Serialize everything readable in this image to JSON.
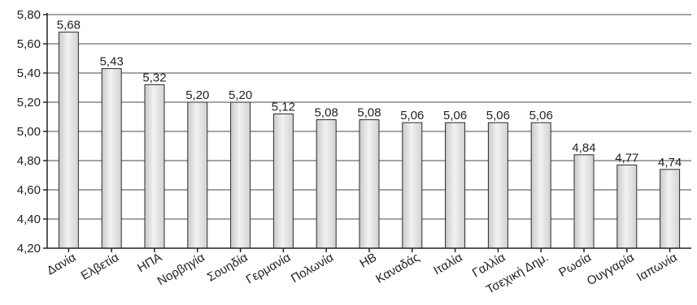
{
  "chart_data": {
    "type": "bar",
    "title": "",
    "xlabel": "",
    "ylabel": "",
    "categories": [
      "Δανία",
      "Ελβετία",
      "ΗΠΑ",
      "Νορβηγία",
      "Σουηδία",
      "Γερμανία",
      "Πολωνία",
      "ΗΒ",
      "Καναδάς",
      "Ιταλία",
      "Γαλλία",
      "Τσεχική Δημ.",
      "Ρωσία",
      "Ουγγαρία",
      "Ιαπωνία"
    ],
    "values": [
      5.68,
      5.43,
      5.32,
      5.2,
      5.2,
      5.12,
      5.08,
      5.08,
      5.06,
      5.06,
      5.06,
      5.06,
      4.84,
      4.77,
      4.74
    ],
    "value_labels": [
      "5,68",
      "5,43",
      "5,32",
      "5,20",
      "5,20",
      "5,12",
      "5,08",
      "5,08",
      "5,06",
      "5,06",
      "5,06",
      "5,06",
      "4,84",
      "4,77",
      "4,74"
    ],
    "y_ticks": [
      4.2,
      4.4,
      4.6,
      4.8,
      5.0,
      5.2,
      5.4,
      5.6,
      5.8
    ],
    "y_tick_labels": [
      "4,20",
      "4,40",
      "4,60",
      "4,80",
      "5,00",
      "5,20",
      "5,40",
      "5,60",
      "5,80"
    ],
    "ylim": [
      4.2,
      5.8
    ],
    "grid": true,
    "legend": "none",
    "colors": {
      "bar_fill_light": "#f2f2f2",
      "bar_fill_dark": "#c9c9c9",
      "bar_stroke": "#2b2b2b",
      "grid": "#4a4a4a",
      "text": "#222222"
    }
  }
}
